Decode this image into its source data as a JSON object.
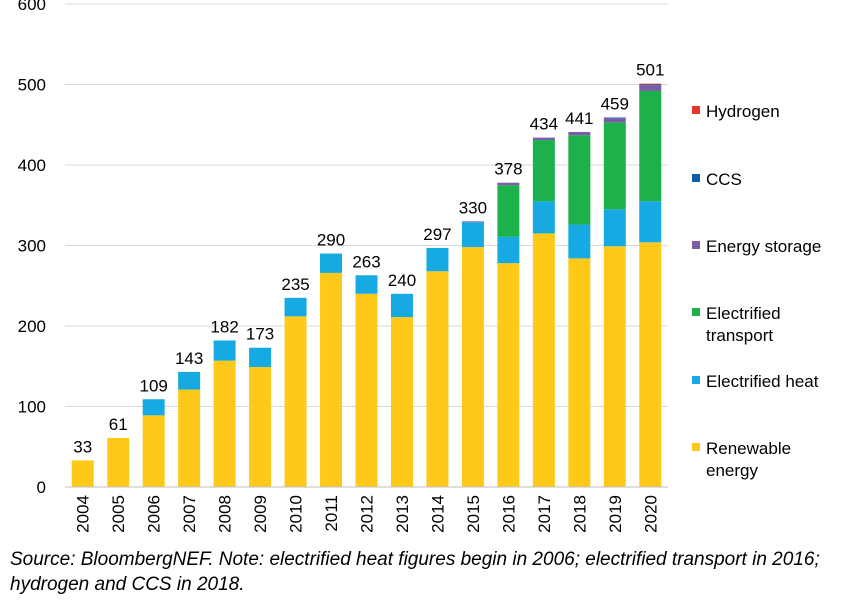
{
  "chart_data": {
    "type": "stacked-bar",
    "title": "",
    "xlabel": "",
    "ylabel": "",
    "ylim": [
      0,
      600
    ],
    "yticks": [
      0,
      100,
      200,
      300,
      400,
      500,
      600
    ],
    "categories": [
      "2004",
      "2005",
      "2006",
      "2007",
      "2008",
      "2009",
      "2010",
      "2011",
      "2012",
      "2013",
      "2014",
      "2015",
      "2016",
      "2017",
      "2018",
      "2019",
      "2020"
    ],
    "totals": [
      33,
      61,
      109,
      143,
      182,
      173,
      235,
      290,
      263,
      240,
      297,
      330,
      378,
      434,
      441,
      459,
      501
    ],
    "series": [
      {
        "name": "Renewable energy",
        "color": "#FFC91A",
        "values": [
          33,
          61,
          89,
          121,
          157,
          149,
          212,
          266,
          240,
          211,
          268,
          298,
          278,
          315,
          284,
          299,
          304
        ]
      },
      {
        "name": "Electrified heat",
        "color": "#17A9E1",
        "values": [
          0,
          0,
          20,
          22,
          25,
          24,
          23,
          24,
          23,
          29,
          29,
          31,
          33,
          40,
          42,
          46,
          51
        ]
      },
      {
        "name": "Electrified transport",
        "color": "#1DB14B",
        "values": [
          0,
          0,
          0,
          0,
          0,
          0,
          0,
          0,
          0,
          0,
          0,
          0,
          64,
          76,
          111,
          108,
          137
        ]
      },
      {
        "name": "Energy storage",
        "color": "#7C5CA8",
        "values": [
          0,
          0,
          0,
          0,
          0,
          0,
          0,
          0,
          0,
          0,
          0,
          1,
          3,
          3,
          4,
          5,
          7
        ]
      },
      {
        "name": "CCS",
        "color": "#0F5FA8",
        "values": [
          0,
          0,
          0,
          0,
          0,
          0,
          0,
          0,
          0,
          0,
          0,
          0,
          0,
          0,
          0,
          1,
          1
        ]
      },
      {
        "name": "Hydrogen",
        "color": "#E8352B",
        "values": [
          0,
          0,
          0,
          0,
          0,
          0,
          0,
          0,
          0,
          0,
          0,
          0,
          0,
          0,
          0,
          0,
          1
        ]
      }
    ],
    "legend": [
      {
        "lines": [
          "Hydrogen"
        ],
        "color": "#E8352B"
      },
      {
        "lines": [
          "CCS"
        ],
        "color": "#0F5FA8"
      },
      {
        "lines": [
          "Energy storage"
        ],
        "color": "#7C5CA8"
      },
      {
        "lines": [
          "Electrified",
          "transport"
        ],
        "color": "#1DB14B"
      },
      {
        "lines": [
          "Electrified heat"
        ],
        "color": "#17A9E1"
      },
      {
        "lines": [
          "Renewable",
          "energy"
        ],
        "color": "#FFC91A"
      }
    ],
    "legend_position": "right"
  },
  "note": {
    "line1": "Source: BloombergNEF. Note: electrified heat figures begin in 2006; electrified transport in 2016;",
    "line2": "hydrogen and CCS in 2018."
  }
}
